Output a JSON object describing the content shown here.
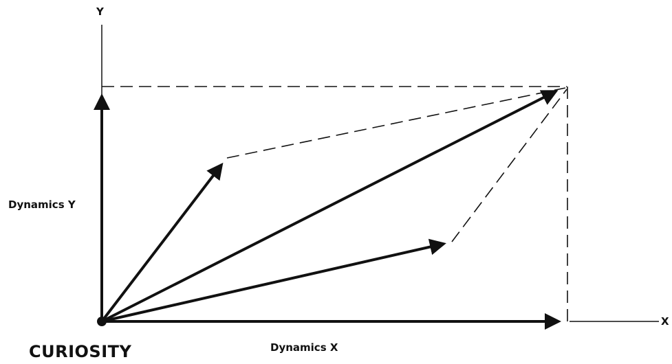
{
  "labels": {
    "y_axis": "Y",
    "x_axis": "X",
    "dynamics_y": "Dynamics Y",
    "dynamics_x": "Dynamics X",
    "origin": "CURIOSITY"
  },
  "colors": {
    "ink": "#111111",
    "background": "#ffffff"
  }
}
